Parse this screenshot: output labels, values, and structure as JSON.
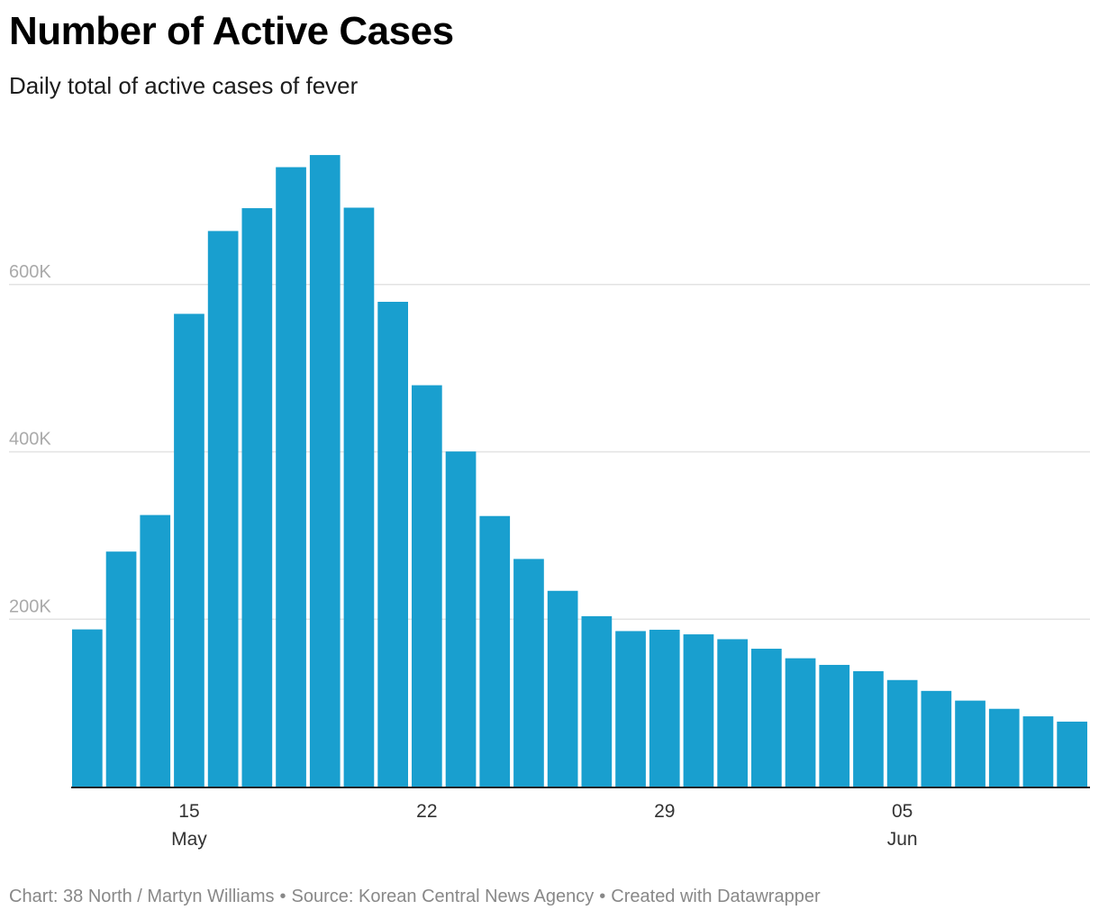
{
  "chart_data": {
    "type": "bar",
    "title": "Number of Active Cases",
    "subtitle": "Daily total of active cases of fever",
    "dates": [
      "2022-05-12",
      "2022-05-13",
      "2022-05-14",
      "2022-05-15",
      "2022-05-16",
      "2022-05-17",
      "2022-05-18",
      "2022-05-19",
      "2022-05-20",
      "2022-05-21",
      "2022-05-22",
      "2022-05-23",
      "2022-05-24",
      "2022-05-25",
      "2022-05-26",
      "2022-05-27",
      "2022-05-28",
      "2022-05-29",
      "2022-05-30",
      "2022-05-31",
      "2022-06-01",
      "2022-06-02",
      "2022-06-03",
      "2022-06-04",
      "2022-06-05",
      "2022-06-06",
      "2022-06-07",
      "2022-06-08",
      "2022-06-09",
      "2022-06-10"
    ],
    "values": [
      187800,
      280800,
      324500,
      564900,
      663900,
      691200,
      740200,
      754700,
      691800,
      579300,
      479600,
      400400,
      323300,
      272000,
      233900,
      203600,
      185800,
      187400,
      181900,
      176100,
      164700,
      153300,
      145400,
      137900,
      127300,
      114300,
      102700,
      92900,
      83900,
      77600
    ],
    "ylim": [
      0,
      800000
    ],
    "y_ticks": [
      {
        "value": 200000,
        "label": "200K"
      },
      {
        "value": 400000,
        "label": "400K"
      },
      {
        "value": 600000,
        "label": "600K"
      }
    ],
    "x_ticks": [
      {
        "date": "2022-05-15",
        "day": "15",
        "month": "May"
      },
      {
        "date": "2022-05-22",
        "day": "22",
        "month": ""
      },
      {
        "date": "2022-05-29",
        "day": "29",
        "month": ""
      },
      {
        "date": "2022-06-05",
        "day": "05",
        "month": "Jun"
      }
    ],
    "grid": true,
    "bar_color": "#199fcf",
    "grid_color": "#e3e3e3",
    "axis_color": "#222222",
    "tick_label_color": "#aaaaaa"
  },
  "footer": {
    "chart_credit": "Chart: 38 North / Martyn Williams",
    "source": "Source: Korean Central News Agency",
    "created": "Created with Datawrapper"
  }
}
